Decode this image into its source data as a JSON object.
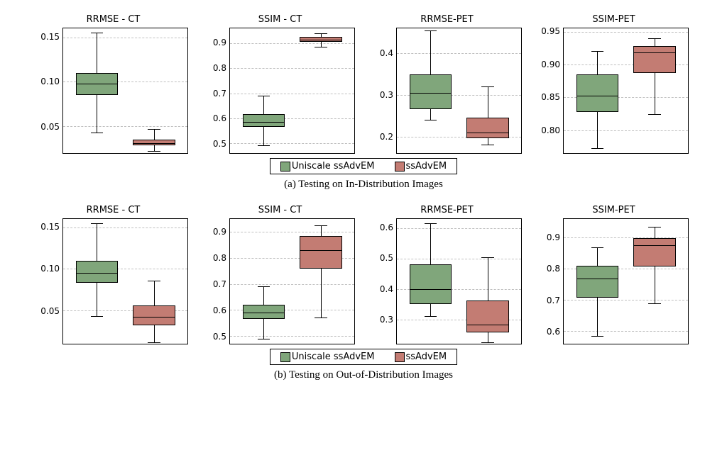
{
  "colors": {
    "uniscale": "#80a67b",
    "ssadvem": "#c37c73",
    "grid": "#bfbfbf",
    "border": "#000000",
    "background": "#ffffff"
  },
  "legend": {
    "items": [
      {
        "label": "Uniscale ssAdvEM",
        "color_key": "uniscale"
      },
      {
        "label": "ssAdvEM",
        "color_key": "ssadvem"
      }
    ]
  },
  "captions": {
    "a": "(a) Testing on In-Distribution Images",
    "b": "(b) Testing on Out-of-Distribution Images"
  },
  "font": {
    "title_size_pt": 13,
    "tick_size_pt": 12,
    "caption_size_pt": 15,
    "caption_family": "serif",
    "axis_family": "sans-serif"
  },
  "rows": [
    {
      "id": "a",
      "subplots": [
        {
          "title": "RRMSE - CT",
          "ylim": [
            0.02,
            0.16
          ],
          "yticks": [
            0.05,
            0.1,
            0.15
          ],
          "ytick_labels": [
            "0.05",
            "0.10",
            "0.15"
          ],
          "boxes": [
            {
              "series": "uniscale",
              "low": 0.043,
              "q1": 0.085,
              "median": 0.098,
              "q3": 0.11,
              "high": 0.155
            },
            {
              "series": "ssadvem",
              "low": 0.022,
              "q1": 0.029,
              "median": 0.031,
              "q3": 0.035,
              "high": 0.047
            }
          ]
        },
        {
          "title": "SSIM - CT",
          "ylim": [
            0.46,
            0.96
          ],
          "yticks": [
            0.5,
            0.6,
            0.7,
            0.8,
            0.9
          ],
          "ytick_labels": [
            "0.5",
            "0.6",
            "0.7",
            "0.8",
            "0.9"
          ],
          "boxes": [
            {
              "series": "uniscale",
              "low": 0.49,
              "q1": 0.565,
              "median": 0.585,
              "q3": 0.615,
              "high": 0.69
            },
            {
              "series": "ssadvem",
              "low": 0.885,
              "q1": 0.905,
              "median": 0.915,
              "q3": 0.925,
              "high": 0.94
            }
          ]
        },
        {
          "title": "RRMSE-PET",
          "ylim": [
            0.16,
            0.46
          ],
          "yticks": [
            0.2,
            0.3,
            0.4
          ],
          "ytick_labels": [
            "0.2",
            "0.3",
            "0.4"
          ],
          "boxes": [
            {
              "series": "uniscale",
              "low": 0.24,
              "q1": 0.265,
              "median": 0.305,
              "q3": 0.35,
              "high": 0.455
            },
            {
              "series": "ssadvem",
              "low": 0.18,
              "q1": 0.195,
              "median": 0.21,
              "q3": 0.245,
              "high": 0.32
            }
          ]
        },
        {
          "title": "SSIM-PET",
          "ylim": [
            0.765,
            0.955
          ],
          "yticks": [
            0.8,
            0.85,
            0.9,
            0.95
          ],
          "ytick_labels": [
            "0.80",
            "0.85",
            "0.90",
            "0.95"
          ],
          "boxes": [
            {
              "series": "uniscale",
              "low": 0.773,
              "q1": 0.828,
              "median": 0.852,
              "q3": 0.885,
              "high": 0.92
            },
            {
              "series": "ssadvem",
              "low": 0.824,
              "q1": 0.887,
              "median": 0.918,
              "q3": 0.928,
              "high": 0.94
            }
          ]
        }
      ]
    },
    {
      "id": "b",
      "subplots": [
        {
          "title": "RRMSE - CT",
          "ylim": [
            0.01,
            0.16
          ],
          "yticks": [
            0.05,
            0.1,
            0.15
          ],
          "ytick_labels": [
            "0.05",
            "0.10",
            "0.15"
          ],
          "boxes": [
            {
              "series": "uniscale",
              "low": 0.043,
              "q1": 0.083,
              "median": 0.095,
              "q3": 0.11,
              "high": 0.155
            },
            {
              "series": "ssadvem",
              "low": 0.012,
              "q1": 0.032,
              "median": 0.042,
              "q3": 0.056,
              "high": 0.086
            }
          ]
        },
        {
          "title": "SSIM - CT",
          "ylim": [
            0.47,
            0.95
          ],
          "yticks": [
            0.5,
            0.6,
            0.7,
            0.8,
            0.9
          ],
          "ytick_labels": [
            "0.5",
            "0.6",
            "0.7",
            "0.8",
            "0.9"
          ],
          "boxes": [
            {
              "series": "uniscale",
              "low": 0.49,
              "q1": 0.565,
              "median": 0.59,
              "q3": 0.62,
              "high": 0.69
            },
            {
              "series": "ssadvem",
              "low": 0.57,
              "q1": 0.76,
              "median": 0.83,
              "q3": 0.885,
              "high": 0.925
            }
          ]
        },
        {
          "title": "RRMSE-PET",
          "ylim": [
            0.22,
            0.63
          ],
          "yticks": [
            0.3,
            0.4,
            0.5,
            0.6
          ],
          "ytick_labels": [
            "0.3",
            "0.4",
            "0.5",
            "0.6"
          ],
          "boxes": [
            {
              "series": "uniscale",
              "low": 0.31,
              "q1": 0.35,
              "median": 0.4,
              "q3": 0.48,
              "high": 0.615
            },
            {
              "series": "ssadvem",
              "low": 0.225,
              "q1": 0.258,
              "median": 0.283,
              "q3": 0.363,
              "high": 0.505
            }
          ]
        },
        {
          "title": "SSIM-PET",
          "ylim": [
            0.56,
            0.96
          ],
          "yticks": [
            0.6,
            0.7,
            0.8,
            0.9
          ],
          "ytick_labels": [
            "0.6",
            "0.7",
            "0.8",
            "0.9"
          ],
          "boxes": [
            {
              "series": "uniscale",
              "low": 0.585,
              "q1": 0.708,
              "median": 0.77,
              "q3": 0.81,
              "high": 0.87
            },
            {
              "series": "ssadvem",
              "low": 0.69,
              "q1": 0.808,
              "median": 0.875,
              "q3": 0.898,
              "high": 0.935
            }
          ]
        }
      ]
    }
  ]
}
